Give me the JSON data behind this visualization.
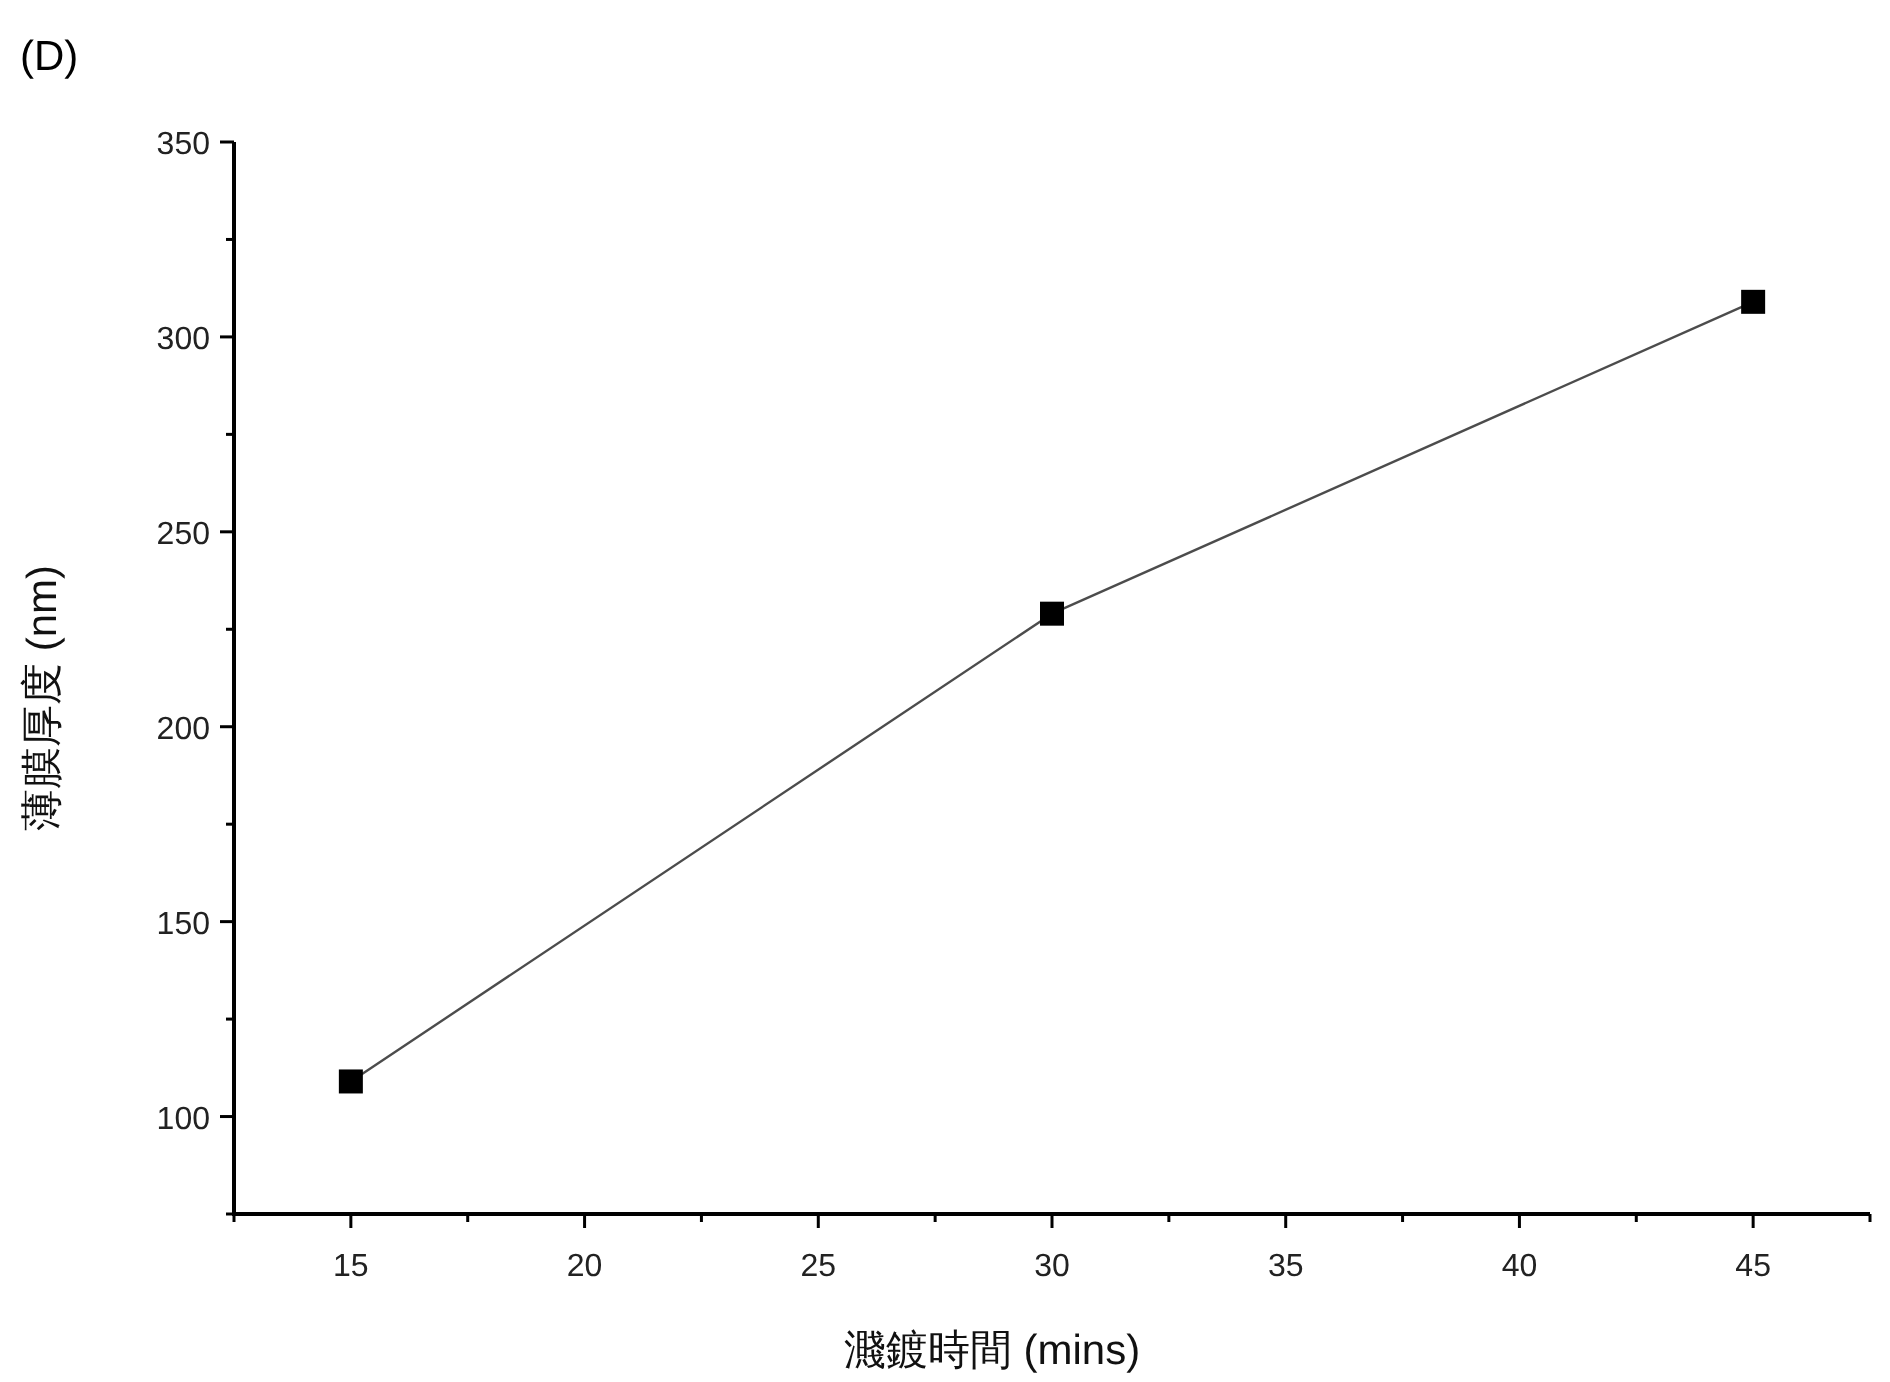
{
  "chart_data": {
    "type": "line",
    "title": "(D)",
    "xlabel": "濺鍍時間 (mins)",
    "ylabel": "薄膜厚度 (nm)",
    "x": [
      15,
      30,
      45
    ],
    "series": [
      {
        "color": "#000000",
        "values": [
          109,
          229,
          309
        ]
      }
    ],
    "marker": "square",
    "line_style": "solid",
    "grid": false,
    "xlim": [
      12.5,
      47.5
    ],
    "ylim": [
      75,
      350
    ],
    "xticks": [
      {
        "value": 12.5,
        "label": null
      },
      15,
      {
        "value": 17.5,
        "label": null
      },
      20,
      {
        "value": 22.5,
        "label": null
      },
      25,
      {
        "value": 27.5,
        "label": null
      },
      30,
      {
        "value": 32.5,
        "label": null
      },
      35,
      {
        "value": 37.5,
        "label": null
      },
      40,
      {
        "value": 42.5,
        "label": null
      },
      45,
      {
        "value": 47.5,
        "label": null
      }
    ],
    "yticks": [
      {
        "value": 75,
        "label": null
      },
      100,
      {
        "value": 125,
        "label": null
      },
      150,
      {
        "value": 175,
        "label": null
      },
      200,
      {
        "value": 225,
        "label": null
      },
      250,
      {
        "value": 275,
        "label": null
      },
      300,
      {
        "value": 325,
        "label": null
      },
      350
    ]
  }
}
